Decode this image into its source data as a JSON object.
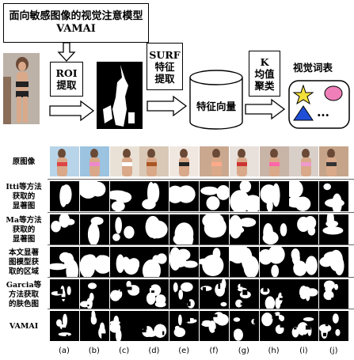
{
  "title": {
    "line1": "面向敏感图像的视觉注意模型",
    "line2": "VAMAI"
  },
  "roi_box": {
    "line1": "ROI",
    "line2": "提取"
  },
  "surf_box": {
    "line1": "SURF",
    "line2": "特征",
    "line3": "提取"
  },
  "database_label": "特征向量",
  "kmeans_box": {
    "line1": "K",
    "line2": "均值",
    "line3": "聚类"
  },
  "vocab_title": "视觉词表",
  "vocab_ellipsis": "…",
  "rows": [
    {
      "line1": "原图像"
    },
    {
      "line1": "Itti等方法",
      "line2": "获取的",
      "line3": "显著图"
    },
    {
      "line1": "Ma等方法",
      "line2": "获取的",
      "line3": "显著图"
    },
    {
      "line1": "本文显著",
      "line2": "图模型获",
      "line3": "取的区域"
    },
    {
      "line1": "Garcia等",
      "line2": "方法获取",
      "line3": "的肤色图"
    },
    {
      "line1": "VAMAI"
    }
  ],
  "columns": [
    "(a)",
    "(b)",
    "(c)",
    "(d)",
    "(e)",
    "(f)",
    "(g)",
    "(h)",
    "(i)",
    "(j)"
  ],
  "colors": {
    "skin": "#d9a98a",
    "vocab_box": "#ffffff",
    "star": "#f2e03a",
    "ellipse": "#ee7fb9",
    "triangle": "#1f4fd6"
  }
}
